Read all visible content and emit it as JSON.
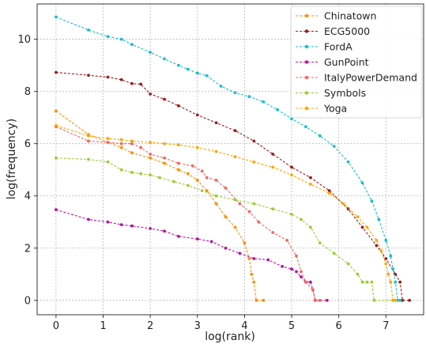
{
  "chart_data": {
    "type": "line",
    "title": "",
    "xlabel": "log(rank)",
    "ylabel": "log(frequency)",
    "xlim": [
      -0.4,
      7.8
    ],
    "ylim": [
      -0.55,
      11.35
    ],
    "xticks": [
      0,
      1,
      2,
      3,
      4,
      5,
      6,
      7
    ],
    "yticks": [
      0,
      2,
      4,
      6,
      8,
      10
    ],
    "grid": true,
    "legend_position": "top-right",
    "series": [
      {
        "name": "Chinatown",
        "color": "#ff8c00",
        "points": [
          [
            0,
            7.25
          ],
          [
            0.69,
            6.35
          ],
          [
            1.1,
            6.05
          ],
          [
            1.39,
            5.85
          ],
          [
            1.61,
            5.65
          ],
          [
            2.0,
            5.45
          ],
          [
            2.3,
            5.25
          ],
          [
            2.6,
            5.0
          ],
          [
            2.8,
            4.85
          ],
          [
            3.0,
            4.6
          ],
          [
            3.2,
            4.2
          ],
          [
            3.4,
            3.7
          ],
          [
            3.6,
            3.2
          ],
          [
            3.8,
            2.8
          ],
          [
            4.0,
            2.2
          ],
          [
            4.1,
            1.6
          ],
          [
            4.15,
            1.0
          ],
          [
            4.2,
            0.7
          ],
          [
            4.25,
            0.0
          ],
          [
            4.4,
            0.0
          ]
        ]
      },
      {
        "name": "ECG5000",
        "color": "#9b1c1c",
        "points": [
          [
            0,
            8.73
          ],
          [
            0.69,
            8.62
          ],
          [
            1.1,
            8.55
          ],
          [
            1.39,
            8.45
          ],
          [
            1.61,
            8.3
          ],
          [
            1.8,
            8.28
          ],
          [
            2.0,
            7.9
          ],
          [
            2.3,
            7.7
          ],
          [
            2.6,
            7.45
          ],
          [
            3.0,
            7.1
          ],
          [
            3.4,
            6.8
          ],
          [
            3.8,
            6.5
          ],
          [
            4.2,
            6.1
          ],
          [
            4.6,
            5.6
          ],
          [
            5.0,
            5.1
          ],
          [
            5.4,
            4.7
          ],
          [
            5.8,
            4.2
          ],
          [
            6.2,
            3.5
          ],
          [
            6.5,
            2.8
          ],
          [
            6.8,
            2.1
          ],
          [
            7.0,
            1.6
          ],
          [
            7.2,
            1.0
          ],
          [
            7.3,
            0.7
          ],
          [
            7.35,
            0.0
          ],
          [
            7.5,
            0.0
          ]
        ]
      },
      {
        "name": "FordA",
        "color": "#17becf",
        "points": [
          [
            0,
            10.85
          ],
          [
            0.69,
            10.35
          ],
          [
            1.1,
            10.1
          ],
          [
            1.39,
            10.0
          ],
          [
            1.61,
            9.8
          ],
          [
            2.0,
            9.5
          ],
          [
            2.3,
            9.25
          ],
          [
            2.6,
            9.0
          ],
          [
            2.8,
            8.85
          ],
          [
            3.0,
            8.7
          ],
          [
            3.2,
            8.6
          ],
          [
            3.5,
            8.2
          ],
          [
            3.8,
            7.95
          ],
          [
            4.1,
            7.8
          ],
          [
            4.4,
            7.6
          ],
          [
            4.7,
            7.3
          ],
          [
            5.0,
            6.95
          ],
          [
            5.3,
            6.65
          ],
          [
            5.6,
            6.3
          ],
          [
            5.9,
            5.9
          ],
          [
            6.2,
            5.3
          ],
          [
            6.5,
            4.5
          ],
          [
            6.7,
            3.8
          ],
          [
            6.85,
            3.1
          ],
          [
            7.0,
            2.3
          ],
          [
            7.1,
            1.7
          ],
          [
            7.15,
            1.2
          ],
          [
            7.2,
            0.7
          ],
          [
            7.25,
            0.0
          ],
          [
            7.3,
            0.0
          ]
        ]
      },
      {
        "name": "GunPoint",
        "color": "#b0179e",
        "points": [
          [
            0,
            3.47
          ],
          [
            0.69,
            3.1
          ],
          [
            1.1,
            3.0
          ],
          [
            1.39,
            2.9
          ],
          [
            1.61,
            2.85
          ],
          [
            2.0,
            2.75
          ],
          [
            2.3,
            2.65
          ],
          [
            2.6,
            2.45
          ],
          [
            3.0,
            2.35
          ],
          [
            3.3,
            2.25
          ],
          [
            3.6,
            2.0
          ],
          [
            3.9,
            1.8
          ],
          [
            4.2,
            1.6
          ],
          [
            4.5,
            1.55
          ],
          [
            4.8,
            1.3
          ],
          [
            5.0,
            1.2
          ],
          [
            5.1,
            1.1
          ],
          [
            5.2,
            0.9
          ],
          [
            5.3,
            0.7
          ],
          [
            5.4,
            0.7
          ],
          [
            5.45,
            0.4
          ],
          [
            5.5,
            0.0
          ],
          [
            5.75,
            0.0
          ]
        ]
      },
      {
        "name": "ItalyPowerDemand",
        "color": "#f4665a",
        "points": [
          [
            0,
            6.65
          ],
          [
            0.69,
            6.1
          ],
          [
            1.1,
            6.05
          ],
          [
            1.39,
            6.0
          ],
          [
            1.61,
            6.0
          ],
          [
            1.8,
            5.85
          ],
          [
            2.0,
            5.6
          ],
          [
            2.3,
            5.45
          ],
          [
            2.6,
            5.25
          ],
          [
            2.9,
            5.15
          ],
          [
            3.1,
            4.95
          ],
          [
            3.2,
            4.7
          ],
          [
            3.4,
            4.6
          ],
          [
            3.6,
            4.3
          ],
          [
            3.9,
            3.7
          ],
          [
            4.1,
            3.4
          ],
          [
            4.3,
            3.0
          ],
          [
            4.6,
            2.6
          ],
          [
            4.9,
            2.3
          ],
          [
            5.1,
            1.7
          ],
          [
            5.2,
            1.1
          ],
          [
            5.3,
            0.7
          ],
          [
            5.45,
            0.4
          ],
          [
            5.5,
            0.0
          ],
          [
            5.6,
            0.0
          ]
        ]
      },
      {
        "name": "Symbols",
        "color": "#9acd32",
        "points": [
          [
            0,
            5.45
          ],
          [
            0.69,
            5.4
          ],
          [
            1.1,
            5.3
          ],
          [
            1.39,
            5.0
          ],
          [
            1.61,
            4.9
          ],
          [
            1.8,
            4.85
          ],
          [
            2.0,
            4.8
          ],
          [
            2.2,
            4.7
          ],
          [
            2.5,
            4.55
          ],
          [
            2.8,
            4.4
          ],
          [
            3.1,
            4.2
          ],
          [
            3.4,
            4.0
          ],
          [
            3.8,
            3.85
          ],
          [
            4.2,
            3.7
          ],
          [
            4.6,
            3.5
          ],
          [
            5.0,
            3.3
          ],
          [
            5.2,
            3.1
          ],
          [
            5.4,
            2.8
          ],
          [
            5.6,
            2.2
          ],
          [
            5.9,
            1.8
          ],
          [
            6.2,
            1.4
          ],
          [
            6.4,
            1.0
          ],
          [
            6.5,
            0.7
          ],
          [
            6.6,
            0.7
          ],
          [
            6.7,
            0.7
          ],
          [
            6.75,
            0.0
          ],
          [
            7.15,
            0.0
          ]
        ]
      },
      {
        "name": "Yoga",
        "color": "#ffa500",
        "points": [
          [
            0,
            6.7
          ],
          [
            0.69,
            6.3
          ],
          [
            1.1,
            6.2
          ],
          [
            1.39,
            6.15
          ],
          [
            1.61,
            6.1
          ],
          [
            2.0,
            6.05
          ],
          [
            2.3,
            6.0
          ],
          [
            2.6,
            5.95
          ],
          [
            3.0,
            5.85
          ],
          [
            3.4,
            5.7
          ],
          [
            3.8,
            5.5
          ],
          [
            4.2,
            5.3
          ],
          [
            4.6,
            5.1
          ],
          [
            5.0,
            4.8
          ],
          [
            5.4,
            4.45
          ],
          [
            5.8,
            4.1
          ],
          [
            6.1,
            3.7
          ],
          [
            6.4,
            3.2
          ],
          [
            6.6,
            2.8
          ],
          [
            6.8,
            2.3
          ],
          [
            6.9,
            1.9
          ],
          [
            7.0,
            1.4
          ],
          [
            7.05,
            1.0
          ],
          [
            7.1,
            0.7
          ],
          [
            7.15,
            0.0
          ],
          [
            7.2,
            0.0
          ]
        ]
      }
    ]
  }
}
